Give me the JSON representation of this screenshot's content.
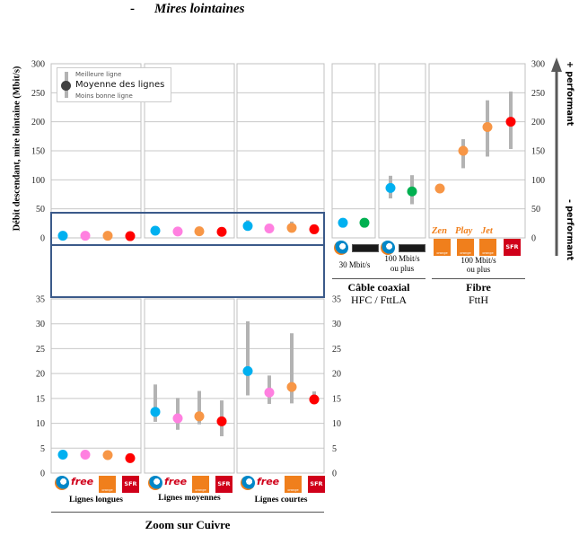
{
  "title": {
    "dash": "-",
    "text": "Mires lointaines"
  },
  "y_axis_label": "Débit descendant, mire lointaine (Mbit/s)",
  "perf_up": "+ performant",
  "perf_down": "- performant",
  "legend": {
    "best": "Meilleure ligne",
    "mean": "Moyenne des lignes",
    "worst": "Moins bonne ligne"
  },
  "colors": {
    "bouygues": "#00b0f0",
    "free": "#ff80e0",
    "orange": "#f79646",
    "sfr": "#ff0000",
    "numericable": "#00b050",
    "range": "#b3b3b3"
  },
  "logos": {
    "free": "free",
    "orange": "orange",
    "sfr": "SFR"
  },
  "offers": [
    "Zen",
    "Play",
    "Jet"
  ],
  "captions": {
    "lignes_longues": "Lignes longues",
    "lignes_moyennes": "Lignes moyennes",
    "lignes_courtes": "Lignes courtes",
    "cable_30": "30 Mbit/s",
    "cable_100_l1": "100 Mbit/s",
    "cable_100_l2": "ou plus",
    "fibre_100_l1": "100 Mbit/s",
    "fibre_100_l2": "ou plus"
  },
  "sections": {
    "cuivre": "Zoom sur Cuivre",
    "cable": "Câble coaxial",
    "cable_sub": "HFC / FttLA",
    "fibre": "Fibre",
    "fibre_sub": "FttH"
  },
  "chart_data": [
    {
      "type": "scatter",
      "title": "Mires lointaines",
      "ylabel": "Débit descendant, mire lointaine (Mbit/s)",
      "ylim": [
        0,
        300
      ],
      "yticks": [
        "0",
        "50",
        "100",
        "150",
        "200",
        "250",
        "300"
      ],
      "grid": true,
      "legend": "top-left",
      "panels": [
        {
          "name": "Lignes longues",
          "points": [
            {
              "operator": "bouygues",
              "mean": 3.7
            },
            {
              "operator": "free",
              "mean": 3.7
            },
            {
              "operator": "orange",
              "mean": 3.6
            },
            {
              "operator": "sfr",
              "mean": 3
            }
          ]
        },
        {
          "name": "Lignes moyennes",
          "points": [
            {
              "operator": "bouygues",
              "mean": 12.3
            },
            {
              "operator": "free",
              "mean": 11
            },
            {
              "operator": "orange",
              "mean": 11.4
            },
            {
              "operator": "sfr",
              "mean": 10.4
            }
          ]
        },
        {
          "name": "Lignes courtes",
          "points": [
            {
              "operator": "bouygues",
              "mean": 20.5,
              "min": 15.6,
              "max": 30.5
            },
            {
              "operator": "free",
              "mean": 16.2
            },
            {
              "operator": "orange",
              "mean": 17.3,
              "min": 14,
              "max": 28.1
            },
            {
              "operator": "sfr",
              "mean": 14.8
            }
          ]
        },
        {
          "name": "30 Mbit/s",
          "points": [
            {
              "operator": "bouygues",
              "mean": 26
            },
            {
              "operator": "numericable",
              "mean": 26
            }
          ]
        },
        {
          "name": "100 Mbit/s ou plus",
          "points": [
            {
              "operator": "bouygues",
              "mean": 86,
              "min": 68,
              "max": 107
            },
            {
              "operator": "numericable",
              "mean": 80,
              "min": 58,
              "max": 108
            }
          ]
        },
        {
          "name": "Fibre 100 Mbit/s ou plus",
          "points": [
            {
              "operator": "orange",
              "offer": "Zen",
              "mean": 85
            },
            {
              "operator": "orange",
              "offer": "Play",
              "mean": 150,
              "min": 120,
              "max": 170
            },
            {
              "operator": "orange",
              "offer": "Jet",
              "mean": 191,
              "min": 140,
              "max": 237
            },
            {
              "operator": "sfr",
              "mean": 200,
              "min": 153,
              "max": 252
            }
          ]
        }
      ]
    },
    {
      "type": "scatter",
      "title": "Zoom sur Cuivre",
      "ylim": [
        0,
        35
      ],
      "yticks": [
        "0",
        "5",
        "10",
        "15",
        "20",
        "25",
        "30",
        "35"
      ],
      "grid": true,
      "panels": [
        {
          "name": "Lignes longues",
          "points": [
            {
              "operator": "bouygues",
              "mean": 3.7
            },
            {
              "operator": "free",
              "mean": 3.7
            },
            {
              "operator": "orange",
              "mean": 3.6
            },
            {
              "operator": "sfr",
              "mean": 3
            }
          ]
        },
        {
          "name": "Lignes moyennes",
          "points": [
            {
              "operator": "bouygues",
              "mean": 12.3,
              "min": 10.3,
              "max": 17.8
            },
            {
              "operator": "free",
              "mean": 11,
              "min": 8.7,
              "max": 15.1
            },
            {
              "operator": "orange",
              "mean": 11.4,
              "min": 9.8,
              "max": 16.5
            },
            {
              "operator": "sfr",
              "mean": 10.4,
              "min": 7.4,
              "max": 14.6
            }
          ]
        },
        {
          "name": "Lignes courtes",
          "points": [
            {
              "operator": "bouygues",
              "mean": 20.5,
              "min": 15.6,
              "max": 30.5
            },
            {
              "operator": "free",
              "mean": 16.2,
              "min": 13.9,
              "max": 19.6
            },
            {
              "operator": "orange",
              "mean": 17.3,
              "min": 14,
              "max": 28.1
            },
            {
              "operator": "sfr",
              "mean": 14.8,
              "min": 14.6,
              "max": 16.4
            }
          ]
        }
      ]
    }
  ]
}
